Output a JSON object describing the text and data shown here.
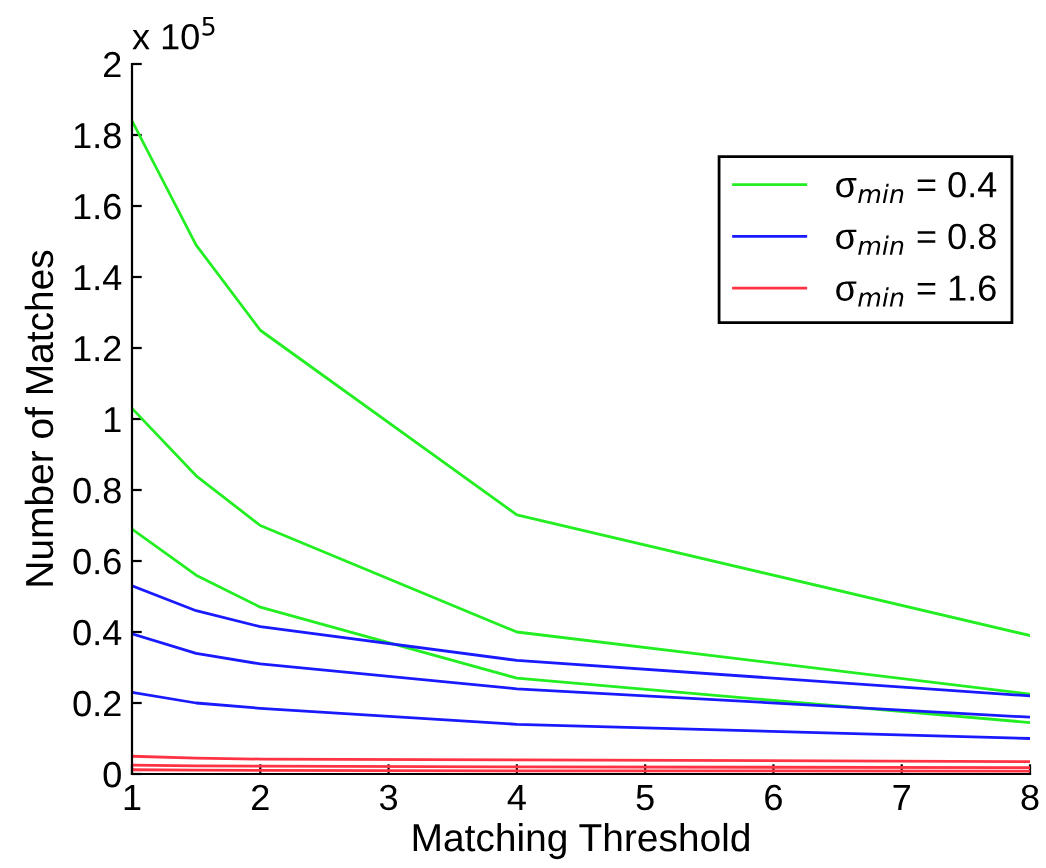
{
  "chart_data": {
    "type": "line",
    "xlabel": "Matching Threshold",
    "ylabel": "Number of Matches",
    "annotations": [
      "x 10$^{5}$"
    ],
    "x": [
      1,
      1.5,
      2,
      4,
      8
    ],
    "series": [
      {
        "name": "σ$_{min}$ = 0.4",
        "color": "#22ee22",
        "values": [
          1.84,
          1.49,
          1.25,
          0.73,
          0.39
        ]
      },
      {
        "color": "#22ee22",
        "values": [
          1.03,
          0.84,
          0.7,
          0.4,
          0.225
        ]
      },
      {
        "color": "#22ee22",
        "values": [
          0.69,
          0.56,
          0.47,
          0.27,
          0.145
        ]
      },
      {
        "name": "σ$_{min}$ = 0.8",
        "color": "#1a1aff",
        "values": [
          0.53,
          0.46,
          0.415,
          0.32,
          0.22
        ]
      },
      {
        "color": "#1a1aff",
        "values": [
          0.395,
          0.34,
          0.31,
          0.24,
          0.16
        ]
      },
      {
        "color": "#1a1aff",
        "values": [
          0.23,
          0.2,
          0.185,
          0.14,
          0.1
        ]
      },
      {
        "name": "σ$_{min}$ = 1.6",
        "color": "#ff3344",
        "values": [
          0.05,
          0.045,
          0.042,
          0.04,
          0.035
        ]
      },
      {
        "color": "#ff3344",
        "values": [
          0.025,
          0.023,
          0.022,
          0.02,
          0.018
        ]
      },
      {
        "color": "#ff3344",
        "values": [
          0.012,
          0.011,
          0.01,
          0.009,
          0.008
        ]
      }
    ],
    "xlim": [
      1,
      8
    ],
    "xticks": [
      1,
      2,
      3,
      4,
      5,
      6,
      7,
      8
    ],
    "ylim": [
      0,
      2
    ],
    "yticks": [
      0,
      0.2,
      0.4,
      0.6,
      0.8,
      1,
      1.2,
      1.4,
      1.6,
      1.8,
      2
    ],
    "grid": false,
    "legend": "top right",
    "marker": "none",
    "line_style": "solid"
  }
}
